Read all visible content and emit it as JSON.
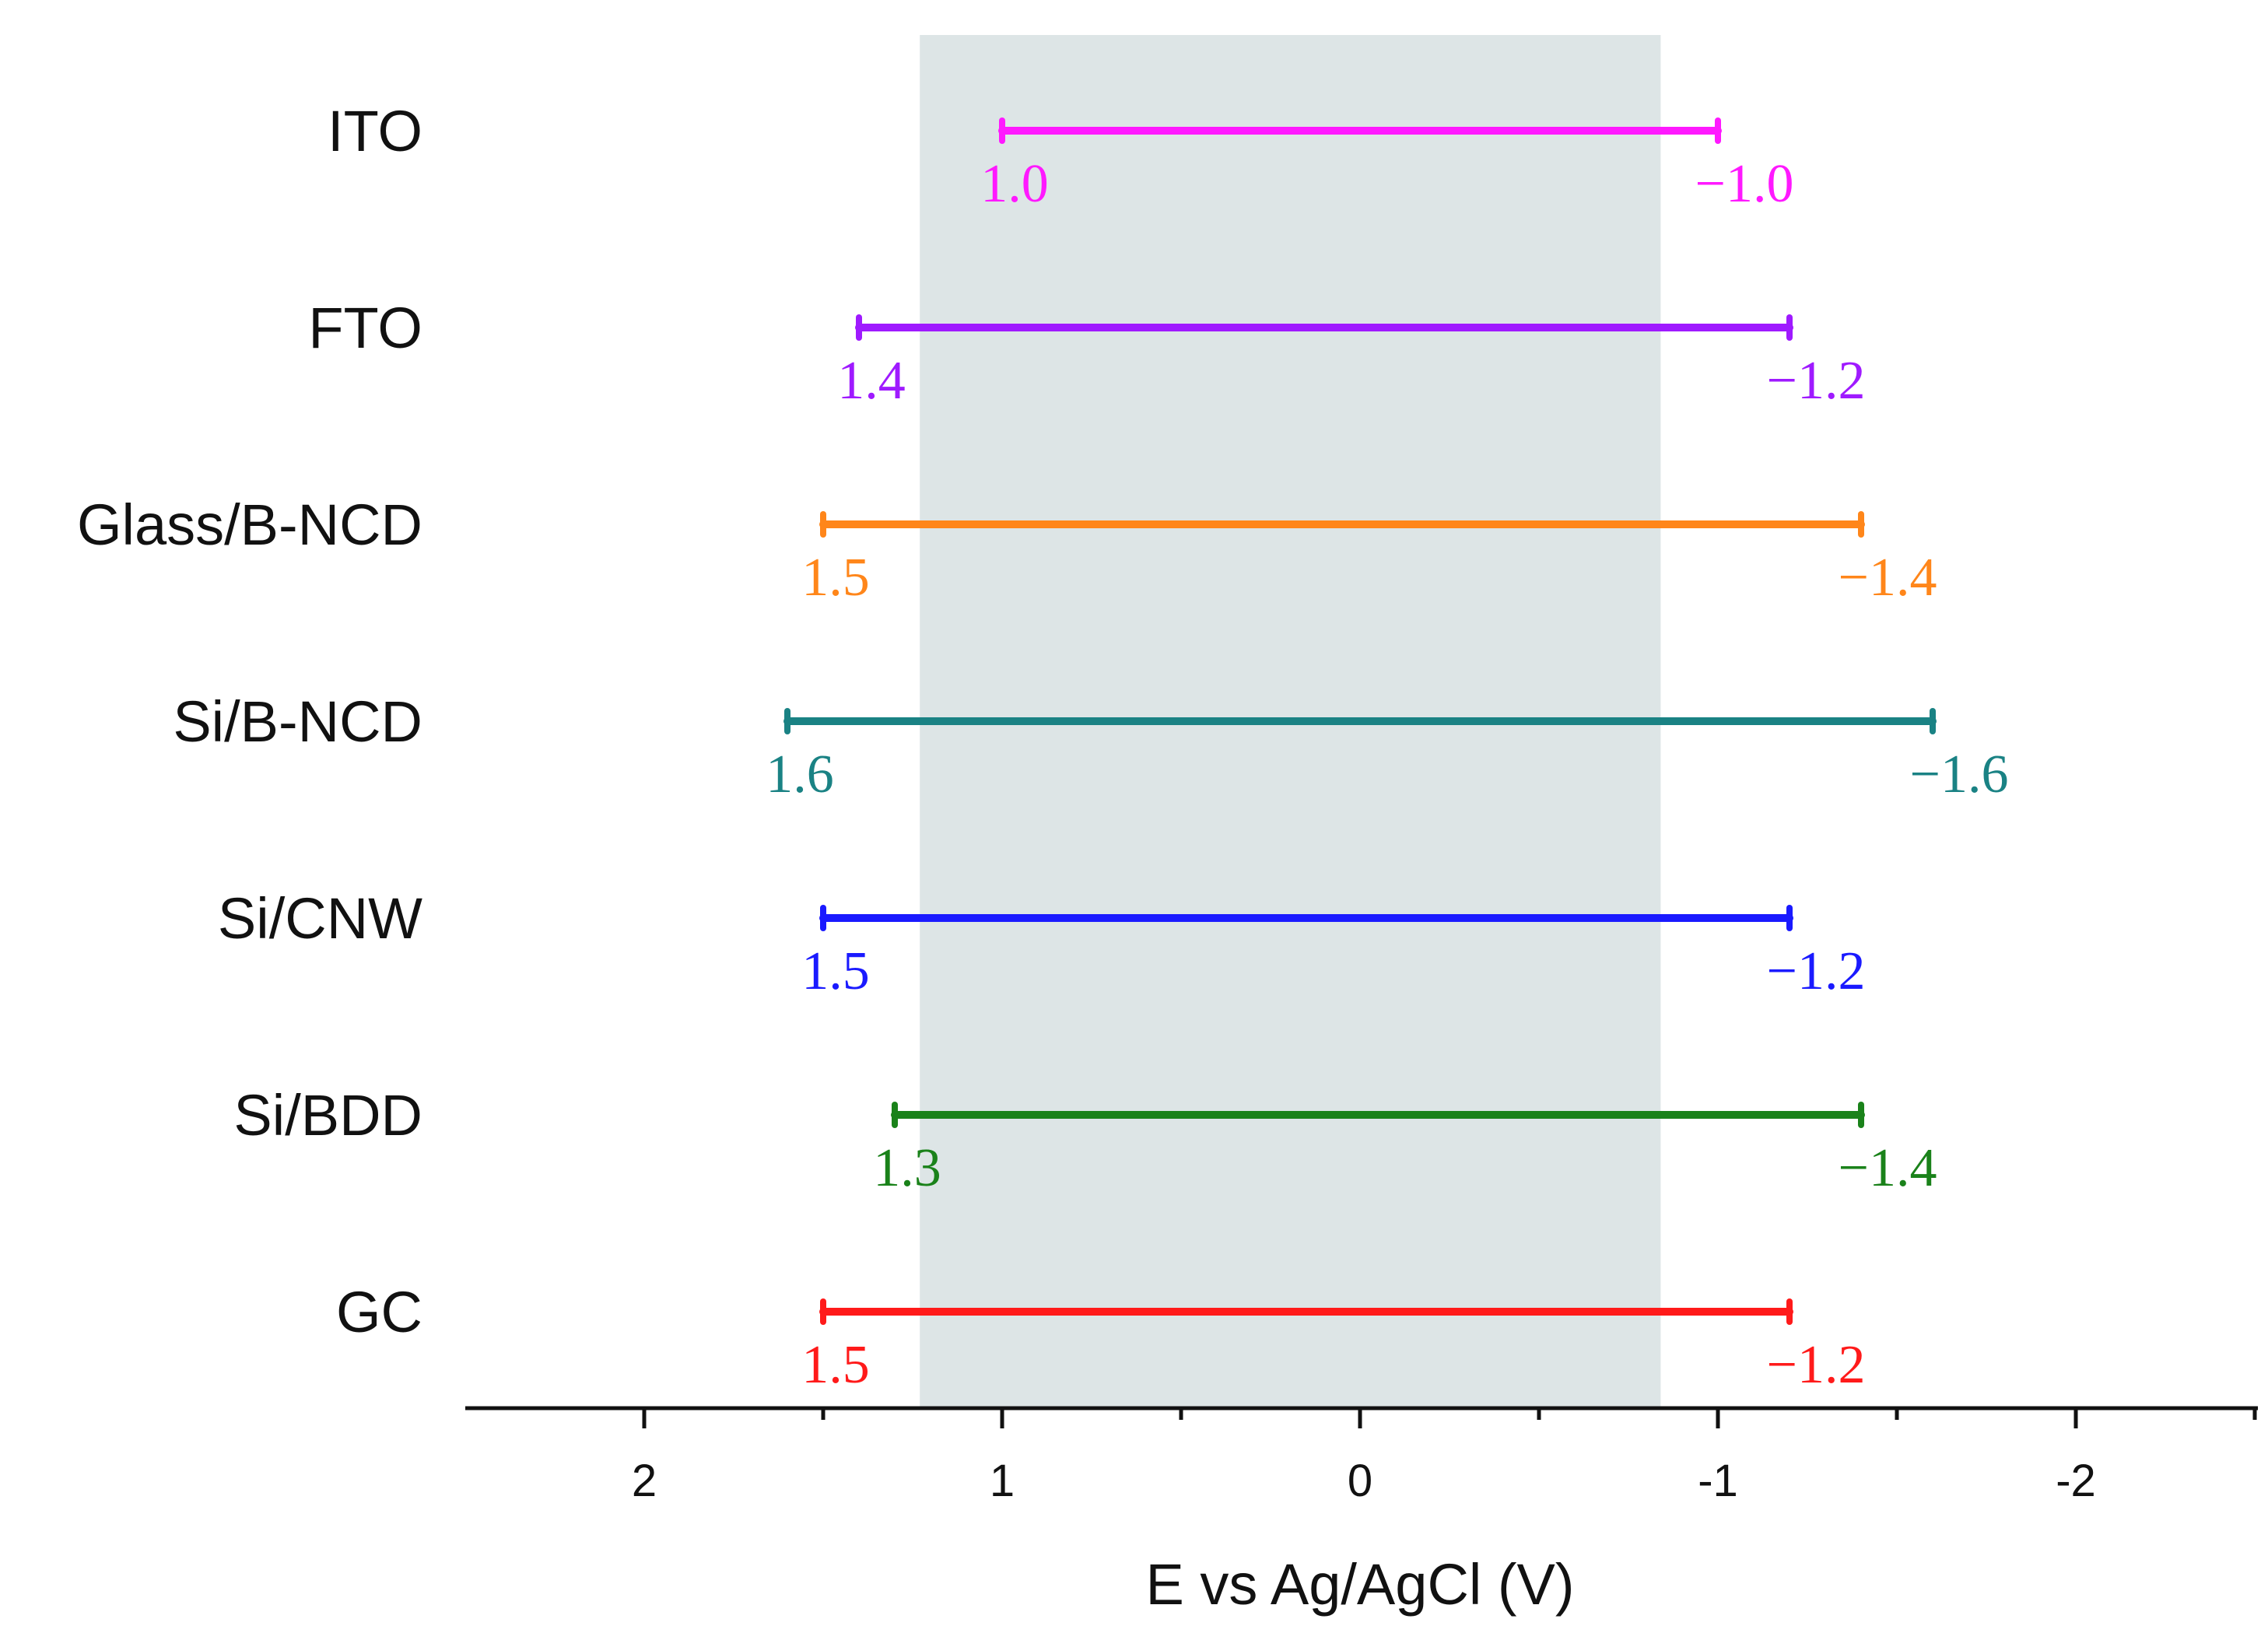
{
  "chart_data": {
    "type": "range",
    "title": "",
    "xlabel": "E vs Ag/AgCl (V)",
    "ylabel": "",
    "xlim": [
      2.5,
      -2.5
    ],
    "x_reversed": true,
    "grid": false,
    "ticks": [
      {
        "value": 2,
        "label": "2"
      },
      {
        "value": 1,
        "label": "1"
      },
      {
        "value": 0,
        "label": "0"
      },
      {
        "value": -1,
        "label": "-1"
      },
      {
        "value": -2,
        "label": "-2"
      }
    ],
    "minor_ticks": [
      1.5,
      0.5,
      -0.5,
      -1.5,
      -2.5
    ],
    "shaded_region": {
      "from": 1.23,
      "to": -0.84,
      "color": "#dde5e6"
    },
    "series": [
      {
        "name": "ITO",
        "low": -1.0,
        "high": 1.0,
        "low_label": "−1.0",
        "high_label": "1.0",
        "color": "#ff19ff"
      },
      {
        "name": "FTO",
        "low": -1.2,
        "high": 1.4,
        "low_label": "−1.2",
        "high_label": "1.4",
        "color": "#9f1aff"
      },
      {
        "name": "Glass/B-NCD",
        "low": -1.4,
        "high": 1.5,
        "low_label": "−1.4",
        "high_label": "1.5",
        "color": "#ff861a"
      },
      {
        "name": "Si/B-NCD",
        "low": -1.6,
        "high": 1.6,
        "low_label": "−1.6",
        "high_label": "1.6",
        "color": "#1a8284"
      },
      {
        "name": "Si/CNW",
        "low": -1.2,
        "high": 1.5,
        "low_label": "−1.2",
        "high_label": "1.5",
        "color": "#1a1aff"
      },
      {
        "name": "Si/BDD",
        "low": -1.4,
        "high": 1.3,
        "low_label": "−1.4",
        "high_label": "1.3",
        "color": "#1a821a"
      },
      {
        "name": "GC",
        "low": -1.2,
        "high": 1.5,
        "low_label": "−1.2",
        "high_label": "1.5",
        "color": "#ff1a1a"
      }
    ]
  }
}
